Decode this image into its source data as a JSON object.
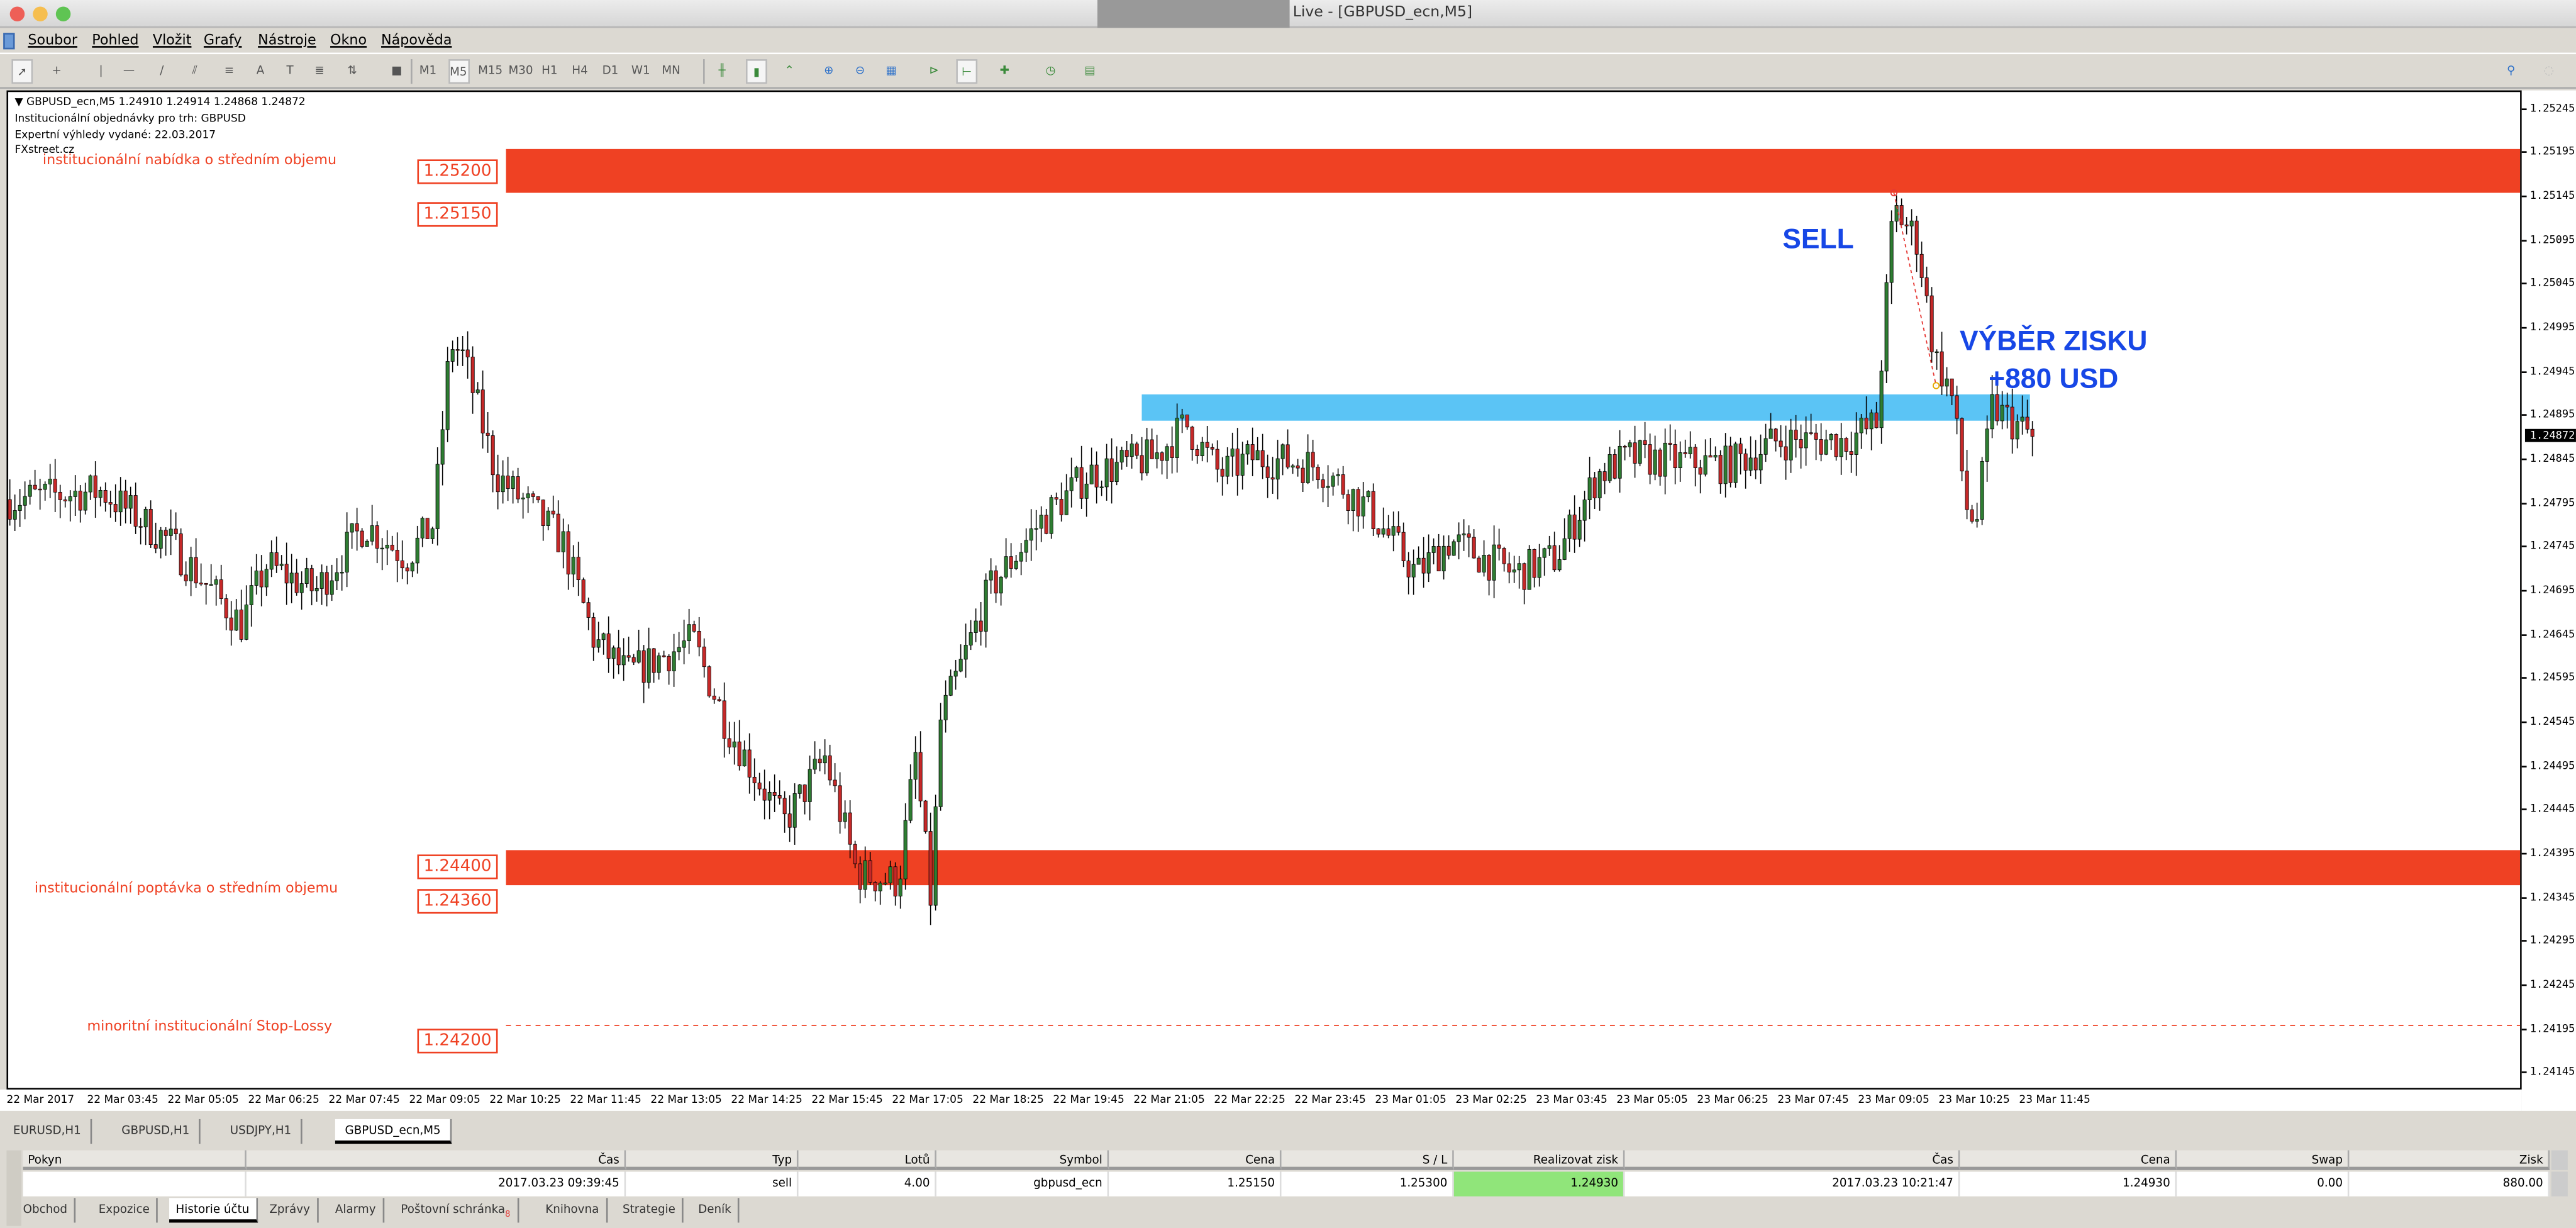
{
  "window": {
    "title": "Live - [GBPUSD_ecn,M5]"
  },
  "menu": [
    "Soubor",
    "Pohled",
    "Vložit",
    "Grafy",
    "Nástroje",
    "Okno",
    "Nápověda"
  ],
  "toolbar": {
    "timeframes": [
      "M1",
      "M5",
      "M15",
      "M30",
      "H1",
      "H4",
      "D1",
      "W1",
      "MN"
    ],
    "active_timeframe": "M5"
  },
  "chart": {
    "header": "GBPUSD_ecn,M5  1.24910 1.24914 1.24868 1.24872",
    "info_lines": [
      "Institucionální objednávky pro trh: GBPUSD",
      "Expertní výhledy vydané: 22.03.2017",
      "FXstreet.cz"
    ],
    "current_price": "1.24872",
    "zones": {
      "supply": {
        "label": "institucionální nabídka o středním objemu",
        "upper": "1.25200",
        "lower": "1.25150",
        "color": "#ef4123"
      },
      "demand": {
        "label": "institucionální poptávka o středním objemu",
        "upper": "1.24400",
        "lower": "1.24360",
        "color": "#ef4123"
      },
      "stop": {
        "label": "minoritní institucionální Stop-Lossy",
        "price": "1.24200",
        "color": "#ef4123"
      },
      "target": {
        "upper": 1.2492,
        "lower": 1.2489,
        "color": "#5bc4f5",
        "from": "22 Mar 21:05",
        "to": "23 Mar 11:15"
      }
    },
    "annotations": {
      "sell": "SELL",
      "take_profit_1": "VÝBĚR ZISKU",
      "take_profit_2": "+880 USD",
      "color": "#1747e6"
    }
  },
  "chart_data": {
    "type": "candlestick",
    "symbol": "GBPUSD_ecn",
    "timeframe": "M5",
    "ylim": [
      1.24125,
      1.25265
    ],
    "y_ticks": [
      "1.25245",
      "1.25195",
      "1.25145",
      "1.25095",
      "1.25045",
      "1.24995",
      "1.24945",
      "1.24895",
      "1.24845",
      "1.24795",
      "1.24745",
      "1.24695",
      "1.24645",
      "1.24595",
      "1.24545",
      "1.24495",
      "1.24445",
      "1.24395",
      "1.24345",
      "1.24295",
      "1.24245",
      "1.24195",
      "1.24145"
    ],
    "x_ticks": [
      "22 Mar 2017",
      "22 Mar 03:45",
      "22 Mar 05:05",
      "22 Mar 06:25",
      "22 Mar 07:45",
      "22 Mar 09:05",
      "22 Mar 10:25",
      "22 Mar 11:45",
      "22 Mar 13:05",
      "22 Mar 14:25",
      "22 Mar 15:45",
      "22 Mar 17:05",
      "22 Mar 18:25",
      "22 Mar 19:45",
      "22 Mar 21:05",
      "22 Mar 22:25",
      "22 Mar 23:45",
      "23 Mar 01:05",
      "23 Mar 02:25",
      "23 Mar 03:45",
      "23 Mar 05:05",
      "23 Mar 06:25",
      "23 Mar 07:45",
      "23 Mar 09:05",
      "23 Mar 10:25",
      "23 Mar 11:45"
    ],
    "price_path": [
      [
        "22 Mar 02:25",
        1.248
      ],
      [
        "22 Mar 03:56",
        1.2481
      ],
      [
        "22 Mar 05:02",
        1.24753
      ],
      [
        "22 Mar 06:15",
        1.24658
      ],
      [
        "22 Mar 06:40",
        1.24725
      ],
      [
        "22 Mar 07:29",
        1.24696
      ],
      [
        "22 Mar 08:18",
        1.24772
      ],
      [
        "22 Mar 08:59",
        1.24734
      ],
      [
        "22 Mar 09:26",
        1.24772
      ],
      [
        "22 Mar 09:43",
        1.24981
      ],
      [
        "22 Mar 09:56",
        1.24962
      ],
      [
        "22 Mar 10:28",
        1.24829
      ],
      [
        "22 Mar 11:34",
        1.24753
      ],
      [
        "22 Mar 12:06",
        1.24639
      ],
      [
        "22 Mar 12:39",
        1.24601
      ],
      [
        "22 Mar 13:44",
        1.24639
      ],
      [
        "22 Mar 14:17",
        1.24544
      ],
      [
        "22 Mar 15:14",
        1.2443
      ],
      [
        "22 Mar 15:55",
        1.24506
      ],
      [
        "22 Mar 16:27",
        1.24373
      ],
      [
        "22 Mar 17:08",
        1.24364
      ],
      [
        "22 Mar 17:25",
        1.24506
      ],
      [
        "22 Mar 17:41",
        1.24335
      ],
      [
        "22 Mar 17:49",
        1.24544
      ],
      [
        "22 Mar 18:38",
        1.24696
      ],
      [
        "22 Mar 19:27",
        1.24772
      ],
      [
        "22 Mar 20:16",
        1.24829
      ],
      [
        "22 Mar 21:22",
        1.24848
      ],
      [
        "22 Mar 21:54",
        1.24886
      ],
      [
        "22 Mar 22:27",
        1.24829
      ],
      [
        "22 Mar 23:00",
        1.24848
      ],
      [
        "23 Mar 00:05",
        1.24839
      ],
      [
        "23 Mar 00:54",
        1.24791
      ],
      [
        "23 Mar 01:43",
        1.24715
      ],
      [
        "23 Mar 02:16",
        1.24753
      ],
      [
        "23 Mar 03:21",
        1.24715
      ],
      [
        "23 Mar 04:02",
        1.24734
      ],
      [
        "23 Mar 04:43",
        1.24829
      ],
      [
        "23 Mar 05:15",
        1.24848
      ],
      [
        "23 Mar 06:53",
        1.24839
      ],
      [
        "23 Mar 07:42",
        1.24867
      ],
      [
        "23 Mar 08:48",
        1.24867
      ],
      [
        "23 Mar 09:20",
        1.24886
      ],
      [
        "23 Mar 09:37",
        1.25133
      ],
      [
        "23 Mar 10:01",
        1.25095
      ],
      [
        "23 Mar 10:18",
        1.24962
      ],
      [
        "23 Mar 10:34",
        1.24924
      ],
      [
        "23 Mar 10:50",
        1.24791
      ],
      [
        "23 Mar 10:59",
        1.24772
      ],
      [
        "23 Mar 11:15",
        1.24905
      ],
      [
        "23 Mar 11:55",
        1.24872
      ]
    ],
    "trade": {
      "open_time": "23 Mar 09:39",
      "open_price": 1.2515,
      "close_time": "23 Mar 10:21",
      "close_price": 1.2493
    },
    "colors": {
      "bull": "#2e7d32",
      "bear": "#c62828",
      "wick": "#000000"
    }
  },
  "chart_tabs": [
    {
      "label": "EURUSD,H1"
    },
    {
      "label": "GBPUSD,H1"
    },
    {
      "label": "USDJPY,H1"
    },
    {
      "label": "GBPUSD_ecn,M5",
      "active": true
    }
  ],
  "terminal": {
    "columns": [
      "Pokyn",
      "Čas",
      "Typ",
      "Lotů",
      "Symbol",
      "Cena",
      "S / L",
      "Realizovat zisk",
      "Čas",
      "Cena",
      "Swap",
      "Zisk"
    ],
    "rows": [
      [
        "",
        "2017.03.23 09:39:45",
        "sell",
        "4.00",
        "gbpusd_ecn",
        "1.25150",
        "1.25300",
        "1.24930",
        "2017.03.23 10:21:47",
        "1.24930",
        "0.00",
        "880.00"
      ]
    ],
    "tabs": [
      "Obchod",
      "Expozice",
      "Historie účtu",
      "Zprávy",
      "Alarmy",
      "Poštovní schránka",
      "Knihovna",
      "Strategie",
      "Deník"
    ],
    "mailbox_badge": "8",
    "active_tab": "Historie účtu"
  }
}
